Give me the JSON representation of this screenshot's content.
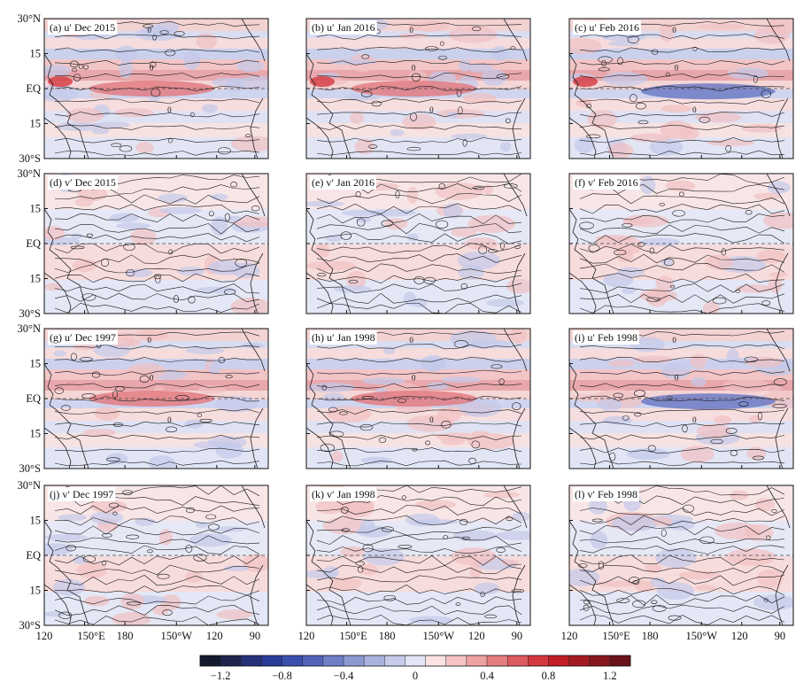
{
  "y_ticks": [
    "30°N",
    "15",
    "EQ",
    "15",
    "30°S"
  ],
  "x_ticks": [
    "120",
    "150°E",
    "180",
    "150°W",
    "120",
    "90"
  ],
  "contour_zero_label": "0",
  "panels": [
    {
      "id": "a",
      "label_prefix": "(a) ",
      "var": "u′",
      "period": "Dec 2015"
    },
    {
      "id": "b",
      "label_prefix": "(b) ",
      "var": "u′",
      "period": "Jan 2016"
    },
    {
      "id": "c",
      "label_prefix": "(c) ",
      "var": "u′",
      "period": "Feb 2016"
    },
    {
      "id": "d",
      "label_prefix": "(d) ",
      "var": "v′",
      "period": "Dec 2015"
    },
    {
      "id": "e",
      "label_prefix": "(e) ",
      "var": "v′",
      "period": "Jan 2016"
    },
    {
      "id": "f",
      "label_prefix": "(f) ",
      "var": "v′",
      "period": "Feb 2016"
    },
    {
      "id": "g",
      "label_prefix": "(g) ",
      "var": "u′",
      "period": "Dec 1997"
    },
    {
      "id": "h",
      "label_prefix": "(h) ",
      "var": "u′",
      "period": "Jan 1998"
    },
    {
      "id": "i",
      "label_prefix": "(i) ",
      "var": "u′",
      "period": "Feb 1998"
    },
    {
      "id": "j",
      "label_prefix": "(j) ",
      "var": "v′",
      "period": "Dec 1997"
    },
    {
      "id": "k",
      "label_prefix": "(k) ",
      "var": "v′",
      "period": "Jan 1998"
    },
    {
      "id": "l",
      "label_prefix": "(l) ",
      "var": "v′",
      "period": "Feb 1998"
    }
  ],
  "colorbar": {
    "tick_labels": [
      "−1.2",
      "−0.8",
      "−0.4",
      "0",
      "0.4",
      "0.8",
      "1.2"
    ],
    "colors": [
      "#141a2e",
      "#1e2650",
      "#26307a",
      "#2b3c98",
      "#3a4fae",
      "#5264ba",
      "#6f7ec6",
      "#8c98d2",
      "#a9b2de",
      "#c6cbea",
      "#e2e5f4",
      "#fbe3e3",
      "#f6c4c4",
      "#eea2a2",
      "#e67e80",
      "#dd5a5e",
      "#d2383e",
      "#c01d26",
      "#a41a22",
      "#87171e",
      "#6a131a"
    ]
  }
}
